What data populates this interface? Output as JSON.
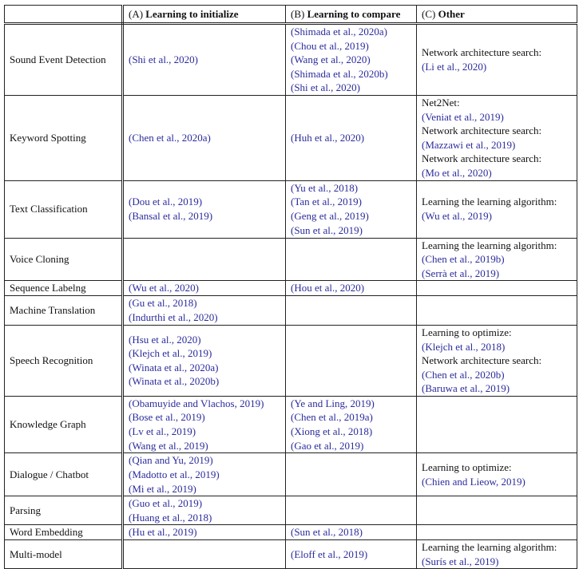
{
  "header": {
    "task": "",
    "a_prefix": "(A) ",
    "a_title": "Learning to initialize",
    "b_prefix": "(B) ",
    "b_title": "Learning to compare",
    "c_prefix": "(C) ",
    "c_title": "Other"
  },
  "colors": {
    "citation": "#2b2b9c",
    "text": "#111111",
    "border": "#222222"
  },
  "rows": [
    {
      "task": "Sound Event Detection",
      "a": [
        "(Shi et al., 2020)"
      ],
      "b": [
        "(Shimada et al., 2020a)",
        "(Chou et al., 2019)",
        "(Wang et al., 2020)",
        "(Shimada et al., 2020b)",
        "(Shi et al., 2020)"
      ],
      "c": [
        {
          "label": "Network architecture search:",
          "refs": [
            "(Li et al., 2020)"
          ]
        }
      ]
    },
    {
      "task": "Keyword Spotting",
      "a": [
        "(Chen et al., 2020a)"
      ],
      "b": [
        "(Huh et al., 2020)"
      ],
      "c": [
        {
          "label": "Net2Net:",
          "refs": [
            "(Veniat et al., 2019)"
          ]
        },
        {
          "label": "Network architecture search:",
          "refs": [
            "(Mazzawi et al., 2019)"
          ]
        },
        {
          "label": "Network architecture search:",
          "refs": [
            "(Mo et al., 2020)"
          ]
        }
      ]
    },
    {
      "task": "Text Classification",
      "a": [
        "(Dou et al., 2019)",
        "(Bansal et al., 2019)"
      ],
      "b": [
        "(Yu et al., 2018)",
        "(Tan et al., 2019)",
        "(Geng et al., 2019)",
        "(Sun et al., 2019)"
      ],
      "c": [
        {
          "label": "Learning the learning algorithm:",
          "refs": [
            "(Wu et al., 2019)"
          ]
        }
      ]
    },
    {
      "task": "Voice Cloning",
      "a": [],
      "b": [],
      "c": [
        {
          "label": "Learning the learning algorithm:",
          "refs": [
            "(Chen et al., 2019b)",
            "(Serrà et al., 2019)"
          ]
        }
      ]
    },
    {
      "task": "Sequence Labelng",
      "a": [
        "(Wu et al., 2020)"
      ],
      "b": [
        "(Hou et al., 2020)"
      ],
      "c": []
    },
    {
      "task": "Machine Translation",
      "a": [
        "(Gu et al., 2018)",
        "(Indurthi et al., 2020)"
      ],
      "b": [],
      "c": []
    },
    {
      "task": "Speech Recognition",
      "a": [
        "(Hsu et al., 2020)",
        "(Klejch et al., 2019)",
        "(Winata et al., 2020a)",
        "(Winata et al., 2020b)"
      ],
      "b": [],
      "c": [
        {
          "label": "Learning to optimize:",
          "refs": [
            "(Klejch et al., 2018)"
          ]
        },
        {
          "label": "Network architecture search:",
          "refs": [
            "(Chen et al., 2020b)",
            "(Baruwa et al., 2019)"
          ]
        }
      ]
    },
    {
      "task": "Knowledge Graph",
      "a": [
        "(Obamuyide and Vlachos, 2019)",
        "(Bose et al., 2019)",
        "(Lv et al., 2019)",
        "(Wang et al., 2019)"
      ],
      "b": [
        "(Ye and Ling, 2019)",
        "(Chen et al., 2019a)",
        "(Xiong et al., 2018)",
        "(Gao et al., 2019)"
      ],
      "c": []
    },
    {
      "task": "Dialogue / Chatbot",
      "a": [
        "(Qian and Yu, 2019)",
        "(Madotto et al., 2019)",
        "(Mi et al., 2019)"
      ],
      "b": [],
      "c": [
        {
          "label": "Learning to optimize:",
          "refs": [
            "(Chien and Lieow, 2019)"
          ]
        }
      ]
    },
    {
      "task": "Parsing",
      "a": [
        "(Guo et al., 2019)",
        "(Huang et al., 2018)"
      ],
      "b": [],
      "c": []
    },
    {
      "task": "Word Embedding",
      "a": [
        "(Hu et al., 2019)"
      ],
      "b": [
        "(Sun et al., 2018)"
      ],
      "c": []
    },
    {
      "task": "Multi-model",
      "a": [],
      "b": [
        "(Eloff et al., 2019)"
      ],
      "c": [
        {
          "label": "Learning the learning algorithm:",
          "refs": [
            "(Surís et al., 2019)"
          ]
        }
      ]
    }
  ]
}
